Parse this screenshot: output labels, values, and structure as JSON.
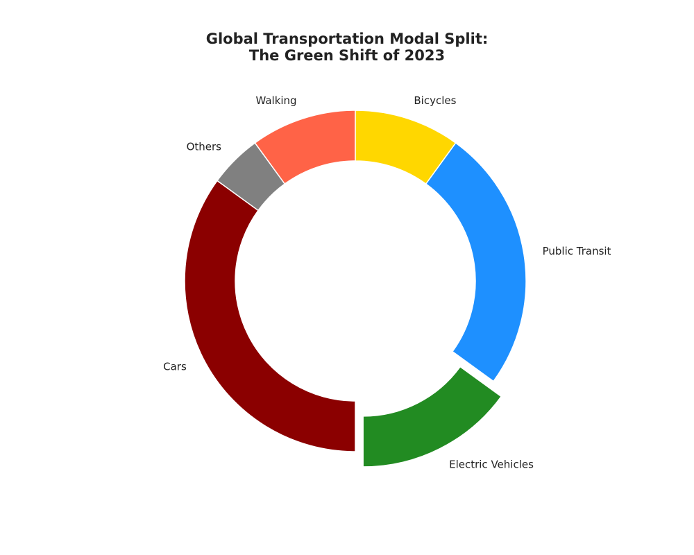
{
  "chart_data": {
    "type": "pie",
    "title_lines": [
      "Global Transportation Modal Split:",
      "The Green Shift of 2023"
    ],
    "slices": [
      {
        "label": "Public Transit",
        "value": 25,
        "color": "#1E90FF",
        "explode": 0.0
      },
      {
        "label": "Electric Vehicles",
        "value": 15,
        "color": "#228B22",
        "explode": 0.1
      },
      {
        "label": "Cars",
        "value": 35,
        "color": "#8B0000",
        "explode": 0.0
      },
      {
        "label": "Others",
        "value": 5,
        "color": "#808080",
        "explode": 0.0
      },
      {
        "label": "Walking",
        "value": 10,
        "color": "#FF6347",
        "explode": 0.0
      },
      {
        "label": "Bicycles",
        "value": 10,
        "color": "#FFD700",
        "explode": 0.0
      }
    ],
    "start_angle_deg": 54,
    "direction": "clockwise",
    "donut": true,
    "legend": "none"
  }
}
